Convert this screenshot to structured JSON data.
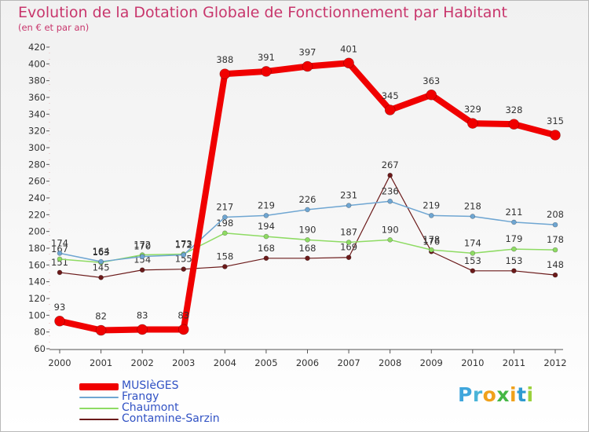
{
  "title": "Evolution de la Dotation Globale de Fonctionnement par Habitant",
  "subtitle": "(en € et par an)",
  "logo": "Proxiti",
  "chart_data": {
    "type": "line",
    "title": "Evolution de la Dotation Globale de Fonctionnement par Habitant",
    "subtitle": "(en € et par an)",
    "xlabel": "",
    "ylabel": "",
    "ylim": [
      60,
      420
    ],
    "yticks": [
      60,
      80,
      100,
      120,
      140,
      160,
      180,
      200,
      220,
      240,
      260,
      280,
      300,
      320,
      340,
      360,
      380,
      400,
      420
    ],
    "grid": false,
    "legend_position": "bottom-left",
    "x": [
      "2000",
      "2001",
      "2002",
      "2003",
      "2004",
      "2005",
      "2006",
      "2007",
      "2008",
      "2009",
      "2010",
      "2011",
      "2012"
    ],
    "series": [
      {
        "name": "Contamine-Sarzin",
        "color": "#6b1a1a",
        "values": [
          151,
          145,
          154,
          155,
          158,
          168,
          168,
          169,
          267,
          176,
          153,
          153,
          148
        ]
      },
      {
        "name": "Chaumont",
        "color": "#8edb63",
        "values": [
          167,
          163,
          172,
          173,
          198,
          194,
          190,
          187,
          190,
          178,
          174,
          179,
          178
        ]
      },
      {
        "name": "Frangy",
        "color": "#6fa6d2",
        "values": [
          174,
          164,
          170,
          172,
          217,
          219,
          226,
          231,
          236,
          219,
          218,
          211,
          208
        ]
      },
      {
        "name": "MUSIèGES",
        "color": "#f00000",
        "values": [
          93,
          82,
          83,
          83,
          388,
          391,
          397,
          401,
          345,
          363,
          329,
          328,
          315
        ]
      }
    ]
  },
  "legend": {
    "items": [
      {
        "label": "MUSIèGES",
        "color": "#f00000"
      },
      {
        "label": "Frangy",
        "color": "#6fa6d2"
      },
      {
        "label": "Chaumont",
        "color": "#8edb63"
      },
      {
        "label": "Contamine-Sarzin",
        "color": "#6b1a1a"
      }
    ]
  }
}
